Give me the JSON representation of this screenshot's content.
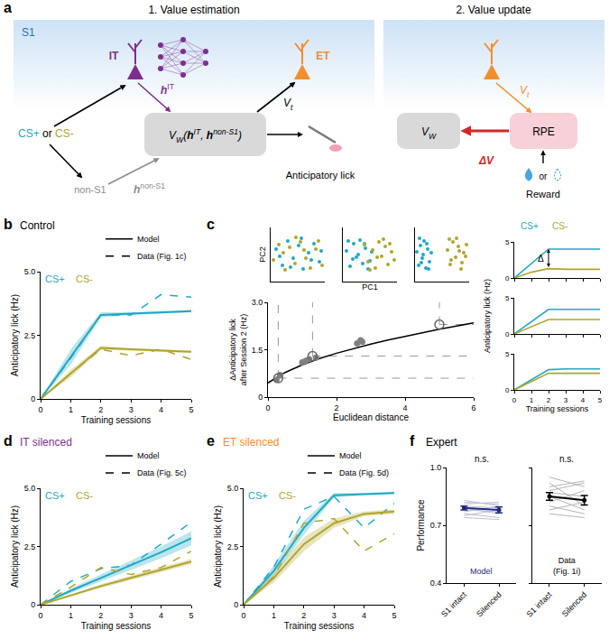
{
  "diagram": {
    "letter": "a",
    "estimation": {
      "title": "1. Value estimation",
      "region": {
        "text": "S1",
        "color": "#2f6fad"
      },
      "it": {
        "text": "IT",
        "color": "#7e2f8e"
      },
      "et": {
        "text": "ET",
        "color": "#f28e2b"
      },
      "stimulus": [
        {
          "t": "CS+",
          "color": "#1fa8c4"
        },
        {
          "t": " or "
        },
        {
          "t": "CS-",
          "color": "#b0a52c"
        }
      ],
      "it_output": {
        "segments": [
          {
            "b": "h"
          },
          {
            "sup": "IT"
          }
        ],
        "color": "#7e2f8e"
      },
      "value_output": {
        "segments": [
          {
            "t": "V"
          },
          {
            "sub": "t"
          }
        ],
        "color": "#000000"
      },
      "estimator": {
        "segments": [
          {
            "t": "V"
          },
          {
            "sub": "W"
          },
          {
            "t": "("
          },
          {
            "b": "h"
          },
          {
            "sup": "IT"
          },
          {
            "t": ", "
          },
          {
            "b": "h"
          },
          {
            "sup": "non-S1"
          },
          {
            "t": ")"
          }
        ],
        "color": "#000000"
      },
      "non_s1": {
        "text": "non-S1",
        "color": "#8c8c8c"
      },
      "non_s1_output": {
        "segments": [
          {
            "b": "h"
          },
          {
            "sup": "non-S1"
          }
        ],
        "color": "#8c8c8c"
      },
      "action": "Anticipatory lick"
    },
    "update": {
      "title": "2. Value update",
      "estimator": {
        "segments": [
          {
            "t": "V"
          },
          {
            "sub": "W"
          }
        ],
        "color": "#000000"
      },
      "value_input": {
        "segments": [
          {
            "t": "V"
          },
          {
            "sub": "t"
          }
        ],
        "color": "#f28e2b"
      },
      "error": "RPE",
      "delta": {
        "text": "ΔV",
        "color": "#d62728"
      },
      "reward": "Reward",
      "or": "or"
    }
  },
  "chart_data": [
    {
      "panel": "b",
      "type": "line",
      "title": {
        "text": "Control",
        "color": "#000000"
      },
      "x_label": "Training sessions",
      "y_label": "Anticipatory lick (Hz)",
      "x": [
        0,
        1,
        2,
        3,
        4,
        5
      ],
      "xlim": [
        0,
        5
      ],
      "xticks": [
        0,
        1,
        2,
        3,
        4,
        5
      ],
      "ylim": [
        0,
        5
      ],
      "yticks": [
        0,
        2.5,
        {
          "value": 5,
          "label": "5.0"
        }
      ],
      "legend": "top right",
      "legend_entries": [
        {
          "name": "Model",
          "line_style": "solid"
        },
        {
          "name": "Data (Fig. 1c)",
          "line_style": "dash"
        }
      ],
      "series": [
        {
          "name": "CS+",
          "color": "#1fa8c4",
          "model": [
            0,
            1.65,
            3.3,
            3.35,
            3.4,
            3.45
          ],
          "model_error": [
            0,
            0.3,
            0.1,
            0.05,
            0.05,
            0.05
          ],
          "data": [
            0,
            1.6,
            3.3,
            3.3,
            4.1,
            4.0
          ]
        },
        {
          "name": "CS-",
          "color": "#b0a52c",
          "model": [
            0,
            1.0,
            2.0,
            1.95,
            1.9,
            1.85
          ],
          "model_error": [
            0,
            0.15,
            0.08,
            0.05,
            0.05,
            0.05
          ],
          "data": [
            0,
            1.0,
            1.95,
            1.7,
            1.95,
            1.55
          ]
        }
      ]
    },
    {
      "panel": "c",
      "type": "scatter",
      "x_label": "Euclidean distance",
      "y_label": "ΔAnticipatory lick after Session 2 (Hz)",
      "xlim": [
        0,
        6
      ],
      "xticks": [
        0,
        2,
        4,
        6
      ],
      "ylim": [
        0,
        3
      ],
      "yticks": [
        0,
        1.5,
        {
          "value": 3,
          "label": "3.0"
        }
      ],
      "points": {
        "x": [
          0.25,
          0.35,
          1.0,
          1.1,
          1.2,
          1.4,
          2.6,
          2.7,
          2.75
        ],
        "y": [
          0.55,
          0.7,
          1.1,
          1.15,
          1.2,
          1.25,
          1.7,
          1.8,
          1.75
        ],
        "color": "#808080"
      },
      "highlighted": {
        "x": [
          0.3,
          1.3,
          5.0
        ],
        "y": [
          0.6,
          1.3,
          2.3
        ],
        "color": "#666666",
        "marker": "open circle"
      },
      "fit": {
        "x": [
          0,
          0.5,
          1,
          1.5,
          2,
          2.5,
          3,
          3.5,
          4,
          4.5,
          5,
          5.5,
          6
        ],
        "y": [
          0.45,
          0.78,
          1.02,
          1.22,
          1.39,
          1.54,
          1.68,
          1.81,
          1.93,
          2.04,
          2.15,
          2.25,
          2.35
        ],
        "color": "#000000"
      },
      "series": [
        {
          "name": "CS+",
          "color": "#1fa8c4"
        },
        {
          "name": "CS-",
          "color": "#b0a52c"
        }
      ],
      "pca": {
        "x_label": "PC1",
        "y_label": "PC2",
        "xlim": [
          -3,
          3
        ],
        "ylim": [
          -3,
          3
        ],
        "tick_labels": false,
        "insets": [
          {
            "CS+": {
              "x": [
                -2.4,
                -1.7,
                -1.1,
                -0.5,
                0.1,
                0.6,
                1.2,
                1.8,
                2.4,
                -2.0,
                -0.8,
                0.4,
                1.5,
                2.6
              ],
              "y": [
                0.6,
                -1.2,
                1.5,
                -0.4,
                1.0,
                -1.6,
                0.2,
                1.2,
                -0.8,
                -0.2,
                -1.4,
                1.8,
                -0.6,
                0.4
              ]
            },
            "CS-": {
              "x": [
                -2.7,
                -2.1,
                -1.4,
                -0.9,
                -0.3,
                0.3,
                0.9,
                1.4,
                2.0,
                2.7,
                -1.6,
                -0.2,
                0.7,
                2.3
              ],
              "y": [
                -0.6,
                1.1,
                -1.7,
                0.8,
                -1.0,
                1.4,
                -0.4,
                -1.5,
                0.6,
                -1.2,
                0.2,
                1.9,
                0.5,
                1.5
              ]
            }
          },
          {
            "CS+": {
              "x": [
                -2.6,
                -2.2,
                -1.8,
                -1.5,
                -1.1,
                -0.8,
                -0.5,
                -0.2,
                0.2,
                -1.9,
                -1.3,
                -0.6,
                0.0,
                -2.4
              ],
              "y": [
                0.4,
                -1.3,
                1.2,
                -0.3,
                1.6,
                -1.0,
                0.7,
                -1.6,
                0.3,
                -0.5,
                0.0,
                1.2,
                -0.7,
                1.5
              ]
            },
            "CS-": {
              "x": [
                -0.6,
                -0.2,
                0.3,
                0.6,
                1.0,
                1.3,
                1.7,
                2.0,
                2.4,
                2.7,
                0.8,
                1.5,
                2.2,
                0.0
              ],
              "y": [
                1.1,
                -0.8,
                0.5,
                -1.5,
                1.4,
                -0.2,
                0.9,
                -1.1,
                0.3,
                -0.6,
                -0.3,
                1.7,
                1.2,
                -1.7
              ]
            }
          },
          {
            "CS+": {
              "x": [
                -2.8,
                -2.6,
                -2.4,
                -2.2,
                -2.0,
                -1.8,
                -1.6,
                -1.4,
                -1.2,
                -2.5,
                -2.1,
                -1.7,
                -1.5,
                -2.3
              ],
              "y": [
                0.3,
                -1.2,
                1.0,
                -0.4,
                1.5,
                -1.5,
                0.6,
                -0.8,
                0.2,
                1.8,
                0.0,
                1.2,
                -1.6,
                -0.9
              ]
            },
            "CS-": {
              "x": [
                0.6,
                0.9,
                1.2,
                1.5,
                1.8,
                2.1,
                2.4,
                2.7,
                1.0,
                1.6,
                2.2,
                2.6,
                0.8,
                1.9
              ],
              "y": [
                0.5,
                -1.1,
                1.4,
                -0.3,
                0.9,
                -1.6,
                0.2,
                1.1,
                -0.6,
                1.8,
                -0.9,
                -0.2,
                1.7,
                0.4
              ]
            }
          }
        ]
      },
      "lick_insets": {
        "x": [
          0,
          1,
          2,
          3,
          4,
          5
        ],
        "x_label": "Training sessions",
        "y_label": "Anticipatory lick (Hz)",
        "xlim": [
          0,
          5
        ],
        "xticks": [
          0,
          1,
          2,
          3,
          4,
          5
        ],
        "ylim": [
          0,
          5
        ],
        "yticks": [
          0,
          5
        ],
        "delta_label": "Δ",
        "insets": [
          {
            "CS+": [
              0,
              2.0,
              4.0,
              4.0,
              4.0,
              4.0
            ],
            "CS-": [
              0,
              0.8,
              1.3,
              1.2,
              1.2,
              1.2
            ]
          },
          {
            "CS+": [
              0,
              1.7,
              3.4,
              3.4,
              3.4,
              3.4
            ],
            "CS-": [
              0,
              1.0,
              2.0,
              2.0,
              2.0,
              2.0
            ]
          },
          {
            "CS+": [
              0,
              1.4,
              2.8,
              2.9,
              2.9,
              2.9
            ],
            "CS-": [
              0,
              1.15,
              2.3,
              2.3,
              2.3,
              2.3
            ]
          }
        ]
      }
    },
    {
      "panel": "d",
      "type": "line",
      "title": {
        "text": "IT silenced",
        "color": "#7e2f8e"
      },
      "x_label": "Training sessions",
      "y_label": "Anticipatory lick (Hz)",
      "x": [
        0,
        1,
        2,
        3,
        4,
        5
      ],
      "xlim": [
        0,
        5
      ],
      "xticks": [
        0,
        1,
        2,
        3,
        4,
        5
      ],
      "ylim": [
        0,
        5
      ],
      "yticks": [
        0,
        2.5,
        {
          "value": 5,
          "label": "5.0"
        }
      ],
      "legend": "top right",
      "legend_entries": [
        {
          "name": "Model",
          "line_style": "solid"
        },
        {
          "name": "Data (Fig. 5c)",
          "line_style": "dash"
        }
      ],
      "series": [
        {
          "name": "CS+",
          "color": "#1fa8c4",
          "model": [
            0,
            0.6,
            1.15,
            1.7,
            2.25,
            2.85
          ],
          "model_error": [
            0,
            0.1,
            0.15,
            0.2,
            0.25,
            0.3
          ],
          "data": [
            0,
            1.0,
            1.55,
            1.7,
            2.6,
            3.55
          ]
        },
        {
          "name": "CS-",
          "color": "#b0a52c",
          "model": [
            0,
            0.4,
            0.8,
            1.15,
            1.5,
            1.85
          ],
          "model_error": [
            0,
            0.05,
            0.08,
            0.1,
            0.1,
            0.12
          ],
          "data": [
            0,
            0.75,
            1.6,
            1.3,
            1.6,
            2.3
          ]
        }
      ]
    },
    {
      "panel": "e",
      "type": "line",
      "title": {
        "text": "ET silenced",
        "color": "#f28e2b"
      },
      "x_label": "Training sessions",
      "y_label": "Anticipatory lick (Hz)",
      "x": [
        0,
        1,
        2,
        3,
        4,
        5
      ],
      "xlim": [
        0,
        5
      ],
      "xticks": [
        0,
        1,
        2,
        3,
        4,
        5
      ],
      "ylim": [
        0,
        5
      ],
      "yticks": [
        0,
        2.5,
        {
          "value": 5,
          "label": "5.0"
        }
      ],
      "legend": "top right",
      "legend_entries": [
        {
          "name": "Model",
          "line_style": "solid"
        },
        {
          "name": "Data (Fig. 5d)",
          "line_style": "dash"
        }
      ],
      "series": [
        {
          "name": "CS+",
          "color": "#1fa8c4",
          "model": [
            0,
            1.45,
            3.3,
            4.7,
            4.75,
            4.8
          ],
          "model_error": [
            0,
            0.25,
            0.3,
            0.1,
            0.05,
            0.05
          ],
          "data": [
            0,
            1.6,
            4.1,
            4.65,
            3.3,
            4.35
          ]
        },
        {
          "name": "CS-",
          "color": "#b0a52c",
          "model": [
            0,
            1.15,
            2.6,
            3.5,
            3.9,
            4.0
          ],
          "model_error": [
            0,
            0.2,
            0.3,
            0.2,
            0.1,
            0.1
          ],
          "data": [
            0,
            1.2,
            3.5,
            3.7,
            2.3,
            3.05
          ]
        }
      ]
    },
    {
      "panel": "f",
      "type": "paired",
      "title": {
        "text": "Expert",
        "color": "#000000"
      },
      "y_label": "Performance",
      "ylim": [
        0.4,
        1
      ],
      "yticks": [
        0.4,
        0.7,
        {
          "value": 1,
          "label": "1.0"
        }
      ],
      "categories": [
        "S1 intact",
        "Silenced"
      ],
      "groups": [
        {
          "name": "Model",
          "color": "#1f2a7a",
          "annotation": "n.s.",
          "subjects": [
            [
              0.76,
              0.74
            ],
            [
              0.78,
              0.77
            ],
            [
              0.8,
              0.79
            ],
            [
              0.82,
              0.81
            ],
            [
              0.74,
              0.73
            ],
            [
              0.77,
              0.8
            ],
            [
              0.79,
              0.76
            ],
            [
              0.81,
              0.82
            ],
            [
              0.75,
              0.78
            ],
            [
              0.83,
              0.8
            ]
          ],
          "mean": [
            0.79,
            0.78
          ],
          "error": [
            0.01,
            0.015
          ]
        },
        {
          "name": "Data (Fig. 1i)",
          "color": "#000000",
          "annotation": "n.s.",
          "subjects": [
            [
              0.95,
              0.9
            ],
            [
              0.92,
              0.8
            ],
            [
              0.88,
              0.92
            ],
            [
              0.85,
              0.78
            ],
            [
              0.82,
              0.88
            ],
            [
              0.8,
              0.76
            ],
            [
              0.87,
              0.85
            ],
            [
              0.78,
              0.82
            ],
            [
              0.9,
              0.93
            ],
            [
              0.76,
              0.74
            ]
          ],
          "mean": [
            0.85,
            0.83
          ],
          "error": [
            0.02,
            0.025
          ]
        }
      ]
    }
  ]
}
